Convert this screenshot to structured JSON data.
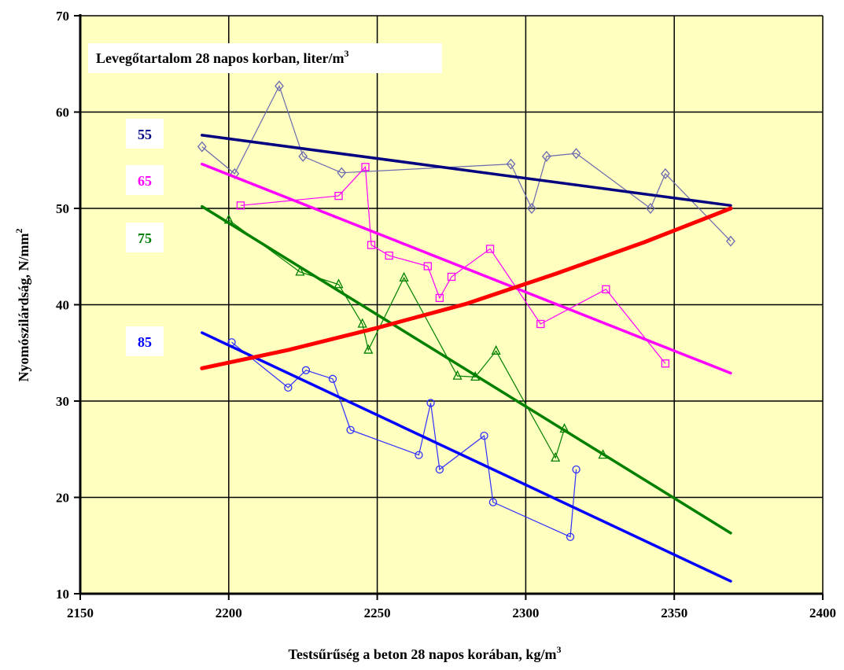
{
  "chart_data": {
    "type": "line",
    "title": "Levegőtartalom 28 napos korban, liter/m",
    "title_sup": "3",
    "xlabel": "Testsűrűség a beton 28 napos korában, kg/m",
    "xlabel_sup": "3",
    "ylabel": "Nyomószilárdság, N/mm",
    "ylabel_sup": "2",
    "xlim": [
      2150,
      2400
    ],
    "ylim": [
      10,
      70
    ],
    "xticks": [
      2150,
      2200,
      2250,
      2300,
      2350,
      2400
    ],
    "yticks": [
      10,
      20,
      30,
      40,
      50,
      60,
      70
    ],
    "grid": true,
    "plot_background": "#FFFFC0",
    "series": [
      {
        "name": "55",
        "color": "#000080",
        "line_color": "#6A6AB0",
        "marker": "diamond",
        "points": [
          [
            2191,
            56.4
          ],
          [
            2202,
            53.6
          ],
          [
            2217,
            62.7
          ],
          [
            2225,
            55.4
          ],
          [
            2238,
            53.7
          ],
          [
            2295,
            54.6
          ],
          [
            2302,
            50.0
          ],
          [
            2307,
            55.4
          ],
          [
            2317,
            55.7
          ],
          [
            2342,
            50.0
          ],
          [
            2347,
            53.6
          ],
          [
            2369,
            46.6
          ]
        ],
        "trend": [
          [
            2191,
            57.6
          ],
          [
            2369,
            50.3
          ]
        ]
      },
      {
        "name": "65",
        "color": "#FF00FF",
        "line_color": "#FF00FF",
        "marker": "square",
        "points": [
          [
            2204,
            50.3
          ],
          [
            2237,
            51.3
          ],
          [
            2246,
            54.3
          ],
          [
            2248,
            46.2
          ],
          [
            2254,
            45.1
          ],
          [
            2267,
            44.0
          ],
          [
            2271,
            40.7
          ],
          [
            2275,
            42.9
          ],
          [
            2288,
            45.8
          ],
          [
            2305,
            38.0
          ],
          [
            2327,
            41.6
          ],
          [
            2347,
            33.9
          ]
        ],
        "trend": [
          [
            2191,
            54.6
          ],
          [
            2369,
            32.9
          ]
        ]
      },
      {
        "name": "75",
        "color": "#008000",
        "line_color": "#008000",
        "marker": "triangle",
        "points": [
          [
            2200,
            48.8
          ],
          [
            2224,
            43.4
          ],
          [
            2237,
            42.1
          ],
          [
            2245,
            38.0
          ],
          [
            2247,
            35.3
          ],
          [
            2259,
            42.8
          ],
          [
            2277,
            32.6
          ],
          [
            2283,
            32.5
          ],
          [
            2290,
            35.2
          ],
          [
            2310,
            24.1
          ],
          [
            2313,
            27.1
          ],
          [
            2326,
            24.4
          ]
        ],
        "trend": [
          [
            2191,
            50.2
          ],
          [
            2369,
            16.3
          ]
        ]
      },
      {
        "name": "85",
        "color": "#0000FF",
        "line_color": "#3030FF",
        "marker": "circle",
        "points": [
          [
            2201,
            36.1
          ],
          [
            2220,
            31.4
          ],
          [
            2226,
            33.2
          ],
          [
            2235,
            32.3
          ],
          [
            2241,
            27.0
          ],
          [
            2264,
            24.4
          ],
          [
            2268,
            29.8
          ],
          [
            2271,
            22.9
          ],
          [
            2286,
            26.4
          ],
          [
            2289,
            19.5
          ],
          [
            2315,
            15.9
          ],
          [
            2317,
            22.9
          ]
        ],
        "trend": [
          [
            2191,
            37.1
          ],
          [
            2369,
            11.3
          ]
        ]
      }
    ],
    "extra_trend": {
      "color": "#FF0000",
      "points": [
        [
          2191,
          33.4
        ],
        [
          2220,
          35.3
        ],
        [
          2250,
          37.6
        ],
        [
          2280,
          40.1
        ],
        [
          2310,
          43.2
        ],
        [
          2340,
          46.5
        ],
        [
          2369,
          50.0
        ]
      ]
    }
  }
}
